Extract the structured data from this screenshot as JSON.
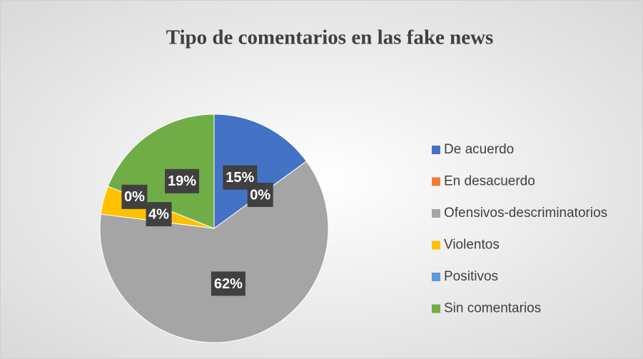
{
  "chart_data": {
    "type": "pie",
    "title": "Tipo de comentarios en las fake news",
    "categories": [
      "De acuerdo",
      "En desacuerdo",
      "Ofensivos-descriminatorios",
      "Violentos",
      "Positivos",
      "Sin comentarios"
    ],
    "values": [
      15,
      0,
      62,
      4,
      0,
      19
    ],
    "value_labels": [
      "15%",
      "0%",
      "62%",
      "4%",
      "0%",
      "19%"
    ],
    "colors": [
      "#4472c4",
      "#ed7d31",
      "#a5a5a5",
      "#ffc000",
      "#5b9bd5",
      "#70ad47"
    ],
    "legend": "right"
  }
}
